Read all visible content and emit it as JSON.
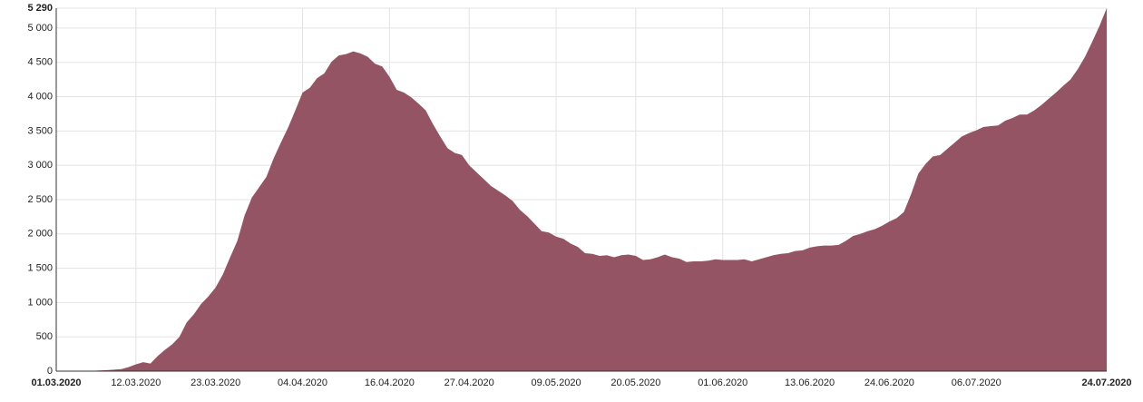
{
  "chart_data": {
    "type": "area",
    "categories": [
      "01.03.2020",
      null,
      null,
      null,
      null,
      null,
      null,
      null,
      null,
      null,
      null,
      "12.03.2020",
      null,
      null,
      null,
      null,
      null,
      null,
      null,
      null,
      null,
      null,
      "23.03.2020",
      null,
      null,
      null,
      null,
      null,
      null,
      null,
      null,
      null,
      null,
      null,
      "04.04.2020",
      null,
      null,
      null,
      null,
      null,
      null,
      null,
      null,
      null,
      null,
      null,
      "16.04.2020",
      null,
      null,
      null,
      null,
      null,
      null,
      null,
      null,
      null,
      null,
      "27.04.2020",
      null,
      null,
      null,
      null,
      null,
      null,
      null,
      null,
      null,
      null,
      null,
      "09.05.2020",
      null,
      null,
      null,
      null,
      null,
      null,
      null,
      null,
      null,
      null,
      "20.05.2020",
      null,
      null,
      null,
      null,
      null,
      null,
      null,
      null,
      null,
      null,
      null,
      "01.06.2020",
      null,
      null,
      null,
      null,
      null,
      null,
      null,
      null,
      null,
      null,
      null,
      "13.06.2020",
      null,
      null,
      null,
      null,
      null,
      null,
      null,
      null,
      null,
      null,
      "24.06.2020",
      null,
      null,
      null,
      null,
      null,
      null,
      null,
      null,
      null,
      null,
      null,
      "06.07.2020",
      null,
      null,
      null,
      null,
      null,
      null,
      null,
      null,
      null,
      null,
      null,
      null,
      null,
      null,
      null,
      null,
      null,
      "24.07.2020"
    ],
    "values": [
      0,
      0,
      0,
      0,
      2,
      5,
      10,
      15,
      22,
      30,
      60,
      100,
      130,
      110,
      220,
      310,
      390,
      500,
      710,
      830,
      980,
      1090,
      1220,
      1410,
      1660,
      1900,
      2270,
      2530,
      2680,
      2830,
      3100,
      3330,
      3550,
      3800,
      4060,
      4130,
      4270,
      4340,
      4510,
      4600,
      4620,
      4660,
      4630,
      4580,
      4480,
      4440,
      4290,
      4100,
      4060,
      3990,
      3900,
      3800,
      3600,
      3420,
      3250,
      3180,
      3150,
      3000,
      2900,
      2800,
      2700,
      2630,
      2560,
      2480,
      2350,
      2260,
      2150,
      2040,
      2020,
      1960,
      1930,
      1860,
      1810,
      1720,
      1710,
      1680,
      1690,
      1660,
      1690,
      1700,
      1680,
      1620,
      1630,
      1660,
      1700,
      1660,
      1640,
      1590,
      1600,
      1600,
      1610,
      1630,
      1620,
      1620,
      1620,
      1630,
      1600,
      1630,
      1660,
      1690,
      1710,
      1720,
      1750,
      1760,
      1800,
      1820,
      1830,
      1830,
      1840,
      1900,
      1970,
      2000,
      2040,
      2070,
      2120,
      2180,
      2230,
      2320,
      2580,
      2880,
      3020,
      3130,
      3150,
      3240,
      3330,
      3420,
      3470,
      3510,
      3560,
      3570,
      3580,
      3650,
      3690,
      3740,
      3740,
      3800,
      3880,
      3970,
      4060,
      4160,
      4250,
      4400,
      4580,
      4800,
      5030,
      5290
    ],
    "color": "#955464",
    "ylim": [
      0,
      5290
    ],
    "yticks": [
      0,
      500,
      {
        "value": 1000,
        "label": "1 000"
      },
      {
        "value": 1500,
        "label": "1 500"
      },
      {
        "value": 2000,
        "label": "2 000"
      },
      {
        "value": 2500,
        "label": "2 500"
      },
      {
        "value": 3000,
        "label": "3 000"
      },
      {
        "value": 3500,
        "label": "3 500"
      },
      {
        "value": 4000,
        "label": "4 000"
      },
      {
        "value": 4500,
        "label": "4 500"
      },
      {
        "value": 5000,
        "label": "5 000"
      },
      {
        "value": 5290,
        "label": "5 290"
      }
    ],
    "grid": true
  }
}
